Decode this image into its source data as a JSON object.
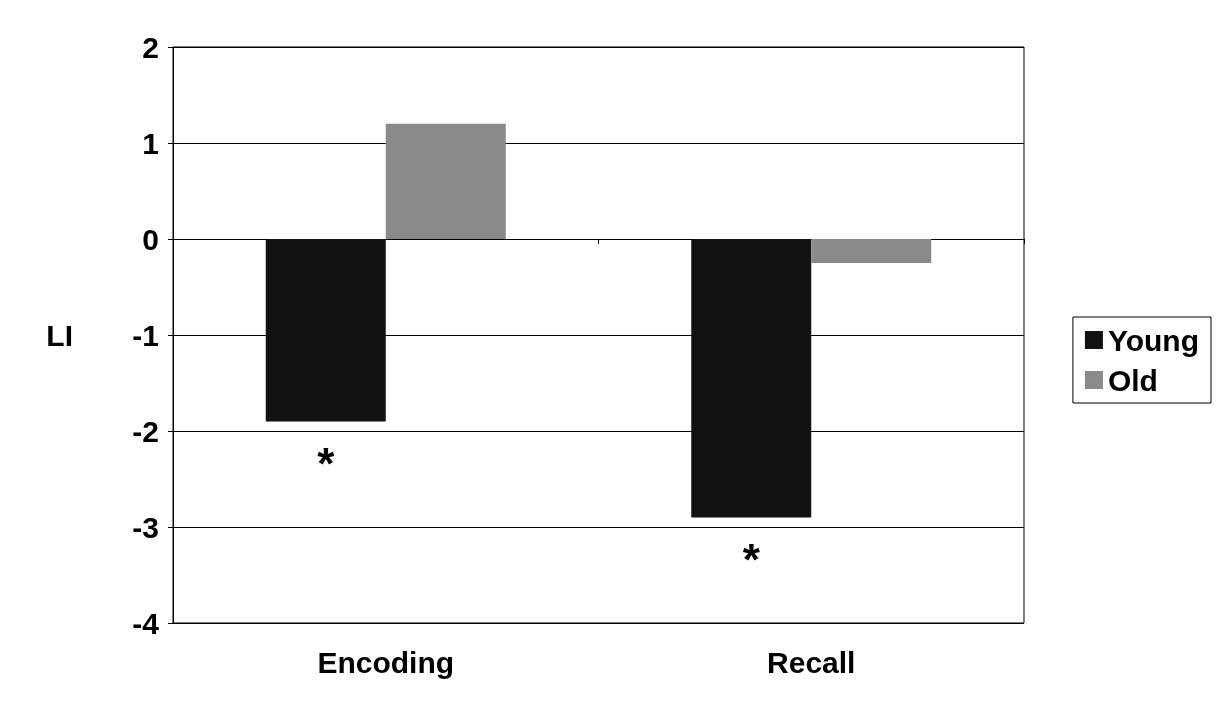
{
  "chart_data": {
    "type": "bar",
    "ylabel": "LI",
    "categories": [
      "Encoding",
      "Recall"
    ],
    "series": [
      {
        "name": "Young",
        "color": "#111111",
        "values": [
          -1.9,
          -2.9
        ]
      },
      {
        "name": "Old",
        "color": "#8a8a8a",
        "values": [
          1.2,
          -0.25
        ]
      }
    ],
    "ylim": [
      -4,
      2
    ],
    "yticks": [
      -4,
      -3,
      -2,
      -1,
      0,
      1,
      2
    ],
    "grid": "y",
    "legend": "right",
    "annotations": [
      "*",
      "*"
    ]
  }
}
